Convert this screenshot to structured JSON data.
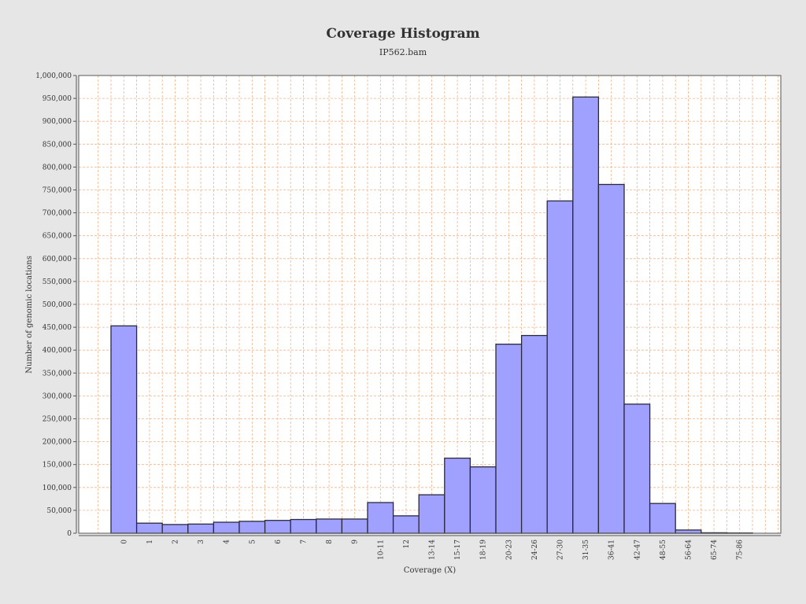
{
  "chart_data": {
    "type": "bar",
    "title": "Coverage Histogram",
    "subtitle": "IP562.bam",
    "xlabel": "Coverage (X)",
    "ylabel": "Number of genomic locations",
    "ylim": [
      0,
      1000000
    ],
    "y_ticks": [
      0,
      50000,
      100000,
      150000,
      200000,
      250000,
      300000,
      350000,
      400000,
      450000,
      500000,
      550000,
      600000,
      650000,
      700000,
      750000,
      800000,
      850000,
      900000,
      950000,
      1000000
    ],
    "y_tick_labels": [
      "0",
      "50,000",
      "100,000",
      "150,000",
      "200,000",
      "250,000",
      "300,000",
      "350,000",
      "400,000",
      "450,000",
      "500,000",
      "550,000",
      "600,000",
      "650,000",
      "700,000",
      "750,000",
      "800,000",
      "850,000",
      "900,000",
      "950,000",
      "1,000,000"
    ],
    "categories": [
      "0",
      "1",
      "2",
      "3",
      "4",
      "5",
      "6",
      "7",
      "8",
      "9",
      "10-11",
      "12",
      "13-14",
      "15-17",
      "18-19",
      "20-23",
      "24-26",
      "27-30",
      "31-35",
      "36-41",
      "42-47",
      "48-55",
      "56-64",
      "65-74",
      "75-86"
    ],
    "values": [
      453000,
      22000,
      19000,
      20000,
      24000,
      26000,
      28000,
      30000,
      31000,
      31000,
      67000,
      38000,
      84000,
      164000,
      145000,
      413000,
      432000,
      726000,
      953000,
      762000,
      282000,
      65000,
      7000,
      1000,
      500
    ],
    "grid": true,
    "legend": "none",
    "colors": {
      "bar_fill": "#a0a0ff",
      "bar_stroke": "#2a2a3a",
      "grid": "#f0b48c",
      "plot_background": "#ffffff",
      "page_background": "#e6e6e6"
    }
  }
}
